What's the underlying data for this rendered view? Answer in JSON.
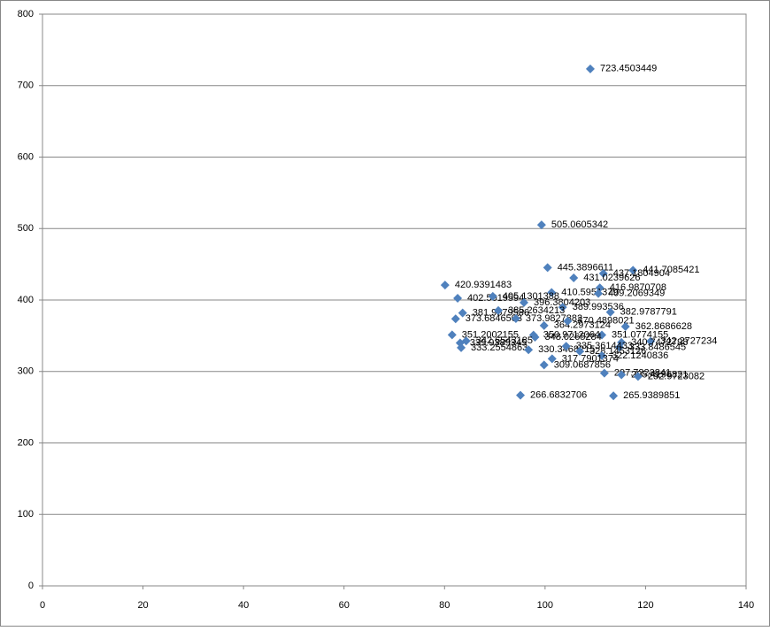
{
  "chart_data": {
    "type": "scatter",
    "xlim": [
      0,
      140
    ],
    "xticks": [
      0,
      20,
      40,
      60,
      80,
      100,
      120,
      140
    ],
    "ylim": [
      0,
      800
    ],
    "yticks": [
      0,
      100,
      200,
      300,
      400,
      500,
      600,
      700,
      800
    ],
    "grid": true,
    "series": [
      {
        "color": "#4f81bd",
        "x": [
          109.0,
          99.3,
          100.5,
          117.5,
          111.6,
          105.7,
          80.1,
          110.9,
          101.3,
          110.6,
          82.6,
          89.6,
          95.8,
          103.5,
          113.0,
          83.6,
          90.7,
          82.2,
          94.2,
          99.8,
          104.5,
          116.0,
          81.5,
          97.7,
          111.3,
          98.0,
          83.1,
          84.3,
          83.3,
          96.7,
          121.0,
          115.2,
          114.8,
          104.2,
          106.9,
          111.3,
          101.4,
          99.8,
          111.8,
          115.2,
          118.5,
          95.1,
          113.6
        ],
        "values": [
          723.4503449,
          505.0605342,
          445.3896611,
          441.7085421,
          437.1804904,
          431.0239626,
          420.9391483,
          416.9870708,
          410.5951379,
          409.2069349,
          402.5019594,
          405.1301388,
          396.3804203,
          389.993536,
          382.9787791,
          381.9579586,
          385.2634213,
          373.6846503,
          373.9827882,
          364.2973124,
          370.4898021,
          362.8686628,
          351.2002155,
          350.9712064,
          351.0774155,
          348.0265284,
          339.9389345,
          342.6543185,
          333.2554863,
          330.3468215,
          342.2727234,
          340.7472798,
          333.8486545,
          335.3614433,
          328.1453126,
          322.1240836,
          317.7901374,
          309.0687856,
          297.7223841,
          295.4196821,
          292.9723082,
          266.6832706,
          265.9389851
        ]
      }
    ]
  }
}
